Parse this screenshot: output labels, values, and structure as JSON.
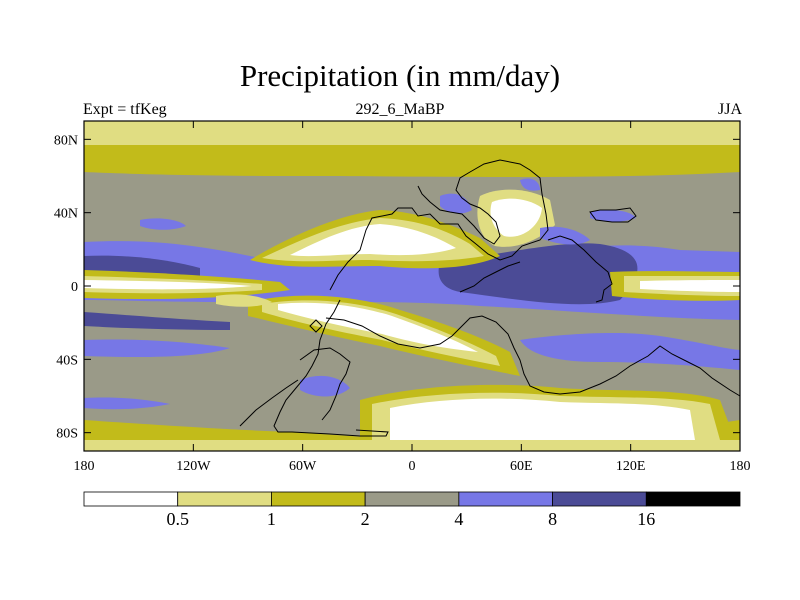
{
  "title": "Precipitation (in mm/day)",
  "subtitle_left": "Expt = tfKeg",
  "subtitle_center": "292_6_MaBP",
  "subtitle_right": "JJA",
  "y_ticks": [
    {
      "label": "80N",
      "lat": 80
    },
    {
      "label": "40N",
      "lat": 40
    },
    {
      "label": "0",
      "lat": 0
    },
    {
      "label": "40S",
      "lat": -40
    },
    {
      "label": "80S",
      "lat": -80
    }
  ],
  "x_ticks": [
    {
      "label": "180",
      "lon": -180
    },
    {
      "label": "120W",
      "lon": -120
    },
    {
      "label": "60W",
      "lon": -60
    },
    {
      "label": "0",
      "lon": 0
    },
    {
      "label": "60E",
      "lon": 60
    },
    {
      "label": "120E",
      "lon": 120
    },
    {
      "label": "180",
      "lon": 180
    }
  ],
  "colorbar": {
    "colors": [
      "#ffffff",
      "#e0dd82",
      "#c2bb1a",
      "#9a9a88",
      "#7777e6",
      "#4b4b96",
      "#000000"
    ],
    "labels": [
      "0.5",
      "1",
      "2",
      "4",
      "8",
      "16"
    ]
  }
}
